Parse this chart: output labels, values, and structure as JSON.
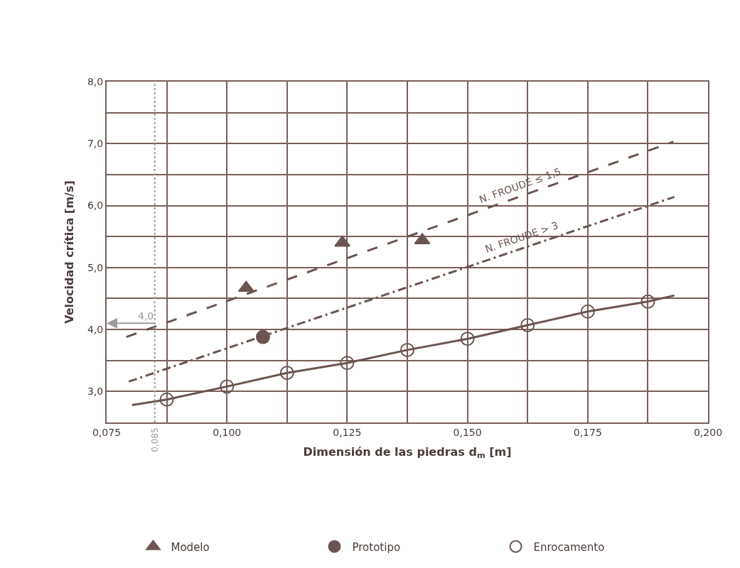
{
  "chart_data": {
    "type": "scatter",
    "xlabel": "Dimensión de las piedras d$_{m}$ [m]",
    "ylabel": "Velocidad crítica [m/s]",
    "xlim": [
      0.075,
      0.2
    ],
    "ylim": [
      2.5,
      8.0
    ],
    "xticks": [
      {
        "value": 0.075,
        "label": "0,075"
      },
      {
        "value": 0.0875,
        "label": null
      },
      {
        "value": 0.1,
        "label": "0,100"
      },
      {
        "value": 0.1125,
        "label": null
      },
      {
        "value": 0.125,
        "label": "0,125"
      },
      {
        "value": 0.1375,
        "label": null
      },
      {
        "value": 0.15,
        "label": "0,150"
      },
      {
        "value": 0.1625,
        "label": null
      },
      {
        "value": 0.175,
        "label": "0,175"
      },
      {
        "value": 0.1875,
        "label": null
      },
      {
        "value": 0.2,
        "label": "0,200"
      }
    ],
    "yticks": [
      {
        "value": 2.5,
        "label": null
      },
      {
        "value": 3.0,
        "label": "3,0"
      },
      {
        "value": 3.5,
        "label": null
      },
      {
        "value": 4.0,
        "label": "4,0"
      },
      {
        "value": 4.5,
        "label": null
      },
      {
        "value": 5.0,
        "label": "5,0"
      },
      {
        "value": 5.5,
        "label": null
      },
      {
        "value": 6.0,
        "label": "6,0"
      },
      {
        "value": 6.5,
        "label": null
      },
      {
        "value": 7.0,
        "label": "7,0"
      },
      {
        "value": 7.5,
        "label": null
      },
      {
        "value": 8.0,
        "label": "8,0"
      }
    ],
    "grid": true,
    "legend": "bottom",
    "series": [
      {
        "name": "N. FROUDE ≤ 1,5",
        "type": "line",
        "color": "#6b5550",
        "line_style": "dashed",
        "marker": "none",
        "x": [
          0.0791,
          0.1928
        ],
        "values": [
          3.88,
          7.03
        ]
      },
      {
        "name": "N. FROUDE > 3",
        "type": "line",
        "color": "#6b5550",
        "line_style": "dashdot",
        "marker": "none",
        "x": [
          0.0796,
          0.193
        ],
        "values": [
          3.16,
          6.14
        ]
      },
      {
        "type": "line",
        "color": "#6b5550",
        "line_style": "solid",
        "marker": "none",
        "x": [
          0.0803,
          0.0875,
          0.1,
          0.1125,
          0.125,
          0.1375,
          0.15,
          0.1625,
          0.175,
          0.1875,
          0.193
        ],
        "values": [
          2.78,
          2.87,
          3.08,
          3.3,
          3.46,
          3.67,
          3.85,
          4.07,
          4.29,
          4.45,
          4.55
        ]
      },
      {
        "name": "Modelo",
        "color": "#6b5550",
        "marker": "triangle",
        "x": [
          0.104,
          0.124,
          0.1406
        ],
        "values": [
          4.67,
          5.4,
          5.44
        ]
      },
      {
        "name": "Prototipo",
        "color": "#6b5550",
        "marker": "circle",
        "x": [
          0.1075
        ],
        "values": [
          3.88
        ]
      },
      {
        "name": "Enrocamento",
        "color": "#6b5550",
        "marker": "circle-open",
        "x": [
          0.0875,
          0.1,
          0.1125,
          0.125,
          0.1375,
          0.15,
          0.1625,
          0.175,
          0.1875
        ],
        "values": [
          2.87,
          3.08,
          3.3,
          3.46,
          3.67,
          3.85,
          4.07,
          4.29,
          4.45
        ]
      }
    ],
    "ref_lines": [
      {
        "axis": "x",
        "value": 0.085,
        "label": "0,085",
        "color": "#9a9a9a",
        "line_style": "dotted"
      }
    ],
    "annotations": [
      {
        "text": "4,0",
        "x": 0.085,
        "y": 4.1
      }
    ]
  }
}
